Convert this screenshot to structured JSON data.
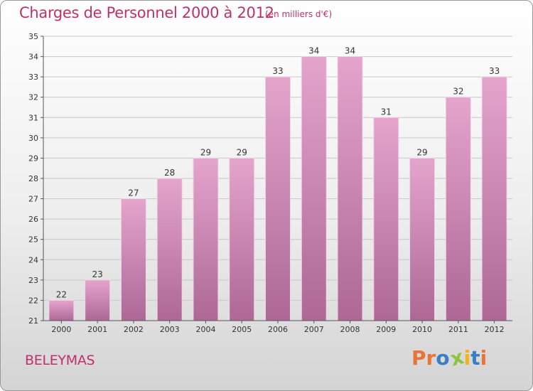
{
  "header": {
    "title": "Charges de Personnel 2000 à 2012",
    "subtitle": "(en milliers d'€)"
  },
  "footer": {
    "commune": "BELEYMAS",
    "logo_letters": [
      "P",
      "r",
      "o",
      "x",
      "i",
      "t",
      "i"
    ],
    "logo_colors": [
      "#e8743b",
      "#e8743b",
      "#3a7fc4",
      "#8cc63f",
      "#f3b21a",
      "#3a7fc4",
      "#e8743b"
    ]
  },
  "colors": {
    "accent": "#c0306a",
    "bar_top": "#e4a4cc",
    "bar_bottom": "#ad6896",
    "grid": "#c8c8c8"
  },
  "chart_data": {
    "type": "bar",
    "categories": [
      "2000",
      "2001",
      "2002",
      "2003",
      "2004",
      "2005",
      "2006",
      "2007",
      "2008",
      "2009",
      "2010",
      "2011",
      "2012"
    ],
    "values": [
      22,
      23,
      27,
      28,
      29,
      29,
      33,
      34,
      34,
      31,
      29,
      32,
      33
    ],
    "data_labels": [
      "22",
      "23",
      "27",
      "28",
      "29",
      "29",
      "33",
      "34",
      "34",
      "31",
      "29",
      "32",
      "33"
    ],
    "y_ticks": [
      "21",
      "22",
      "23",
      "24",
      "25",
      "26",
      "27",
      "28",
      "29",
      "30",
      "31",
      "32",
      "33",
      "34",
      "35"
    ],
    "ylim": [
      21,
      35
    ],
    "grid": true
  }
}
